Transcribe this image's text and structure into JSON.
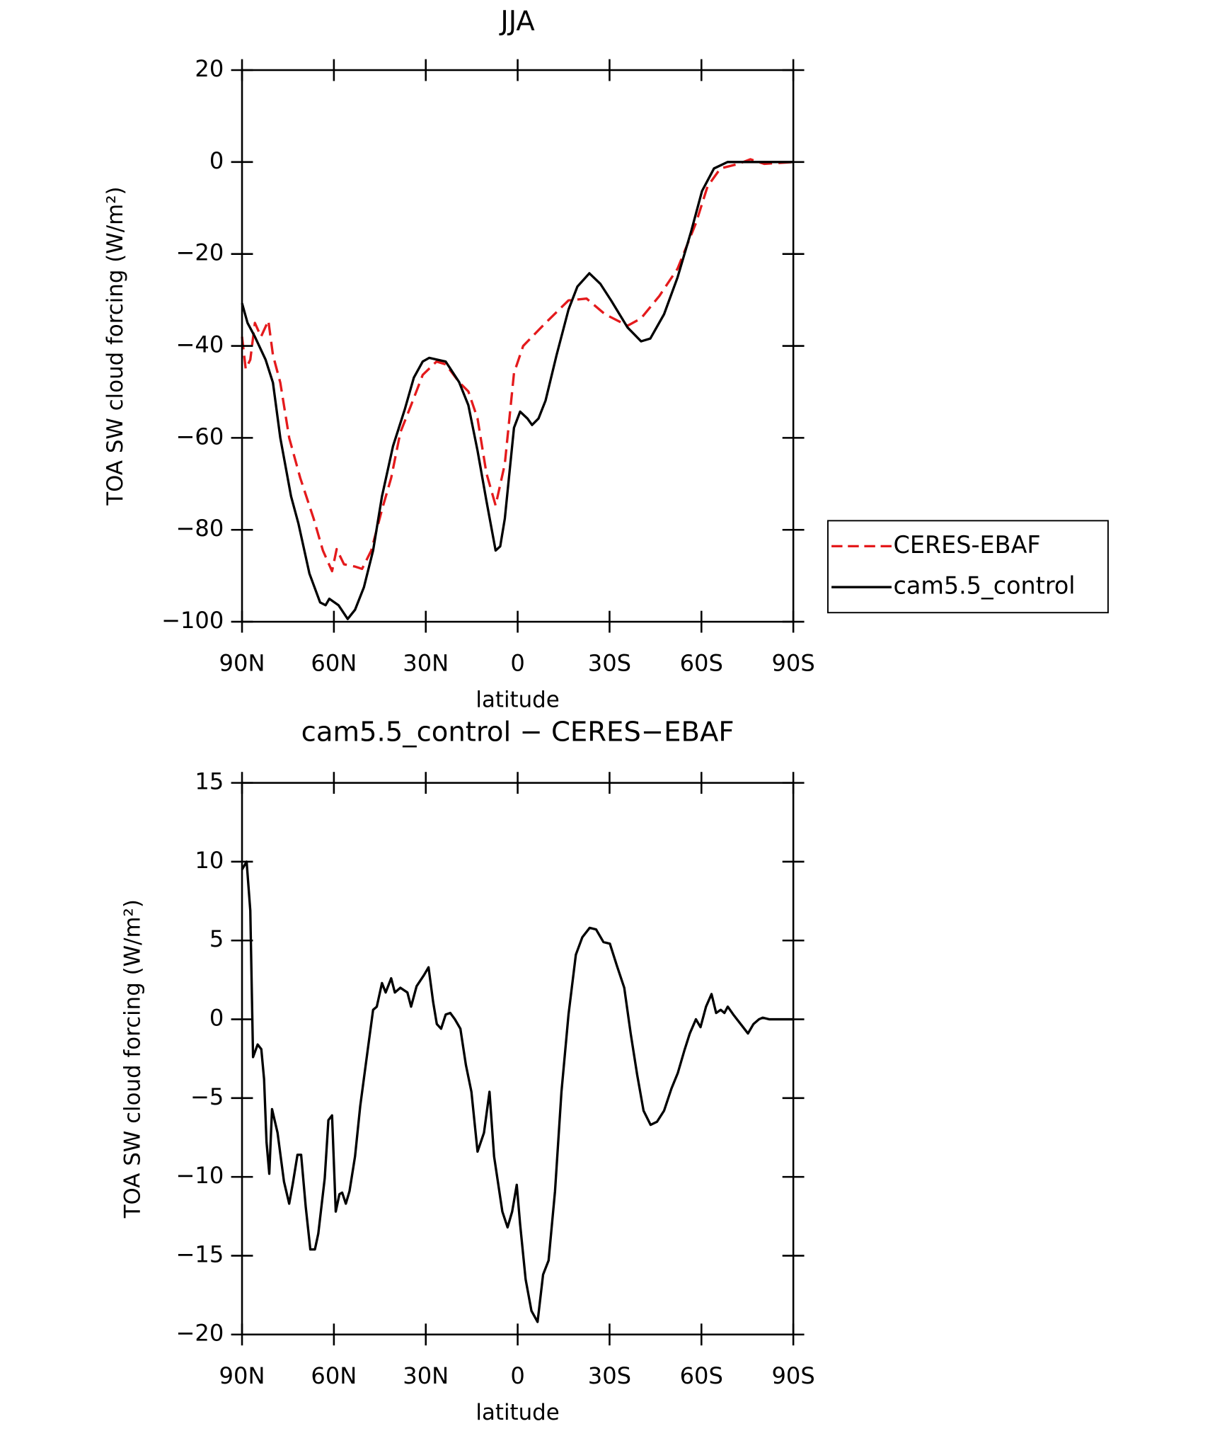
{
  "chart_data": [
    {
      "type": "line",
      "title": "JJA",
      "x_label": "latitude",
      "y_label": "TOA SW cloud forcing (W/m²)",
      "xlim": [
        90,
        -90
      ],
      "xticks": [
        {
          "value": 90,
          "label": "90N"
        },
        {
          "value": 60,
          "label": "60N"
        },
        {
          "value": 30,
          "label": "30N"
        },
        0,
        {
          "value": -30,
          "label": "30S"
        },
        {
          "value": -60,
          "label": "60S"
        },
        {
          "value": -90,
          "label": "90S"
        }
      ],
      "ylim": [
        -100,
        20
      ],
      "yticks": [
        {
          "value": -100,
          "label": "−100"
        },
        {
          "value": -80,
          "label": "−80"
        },
        {
          "value": -60,
          "label": "−60"
        },
        {
          "value": -40,
          "label": "−40"
        },
        {
          "value": -20,
          "label": "−20"
        },
        0,
        20
      ],
      "legend": "right",
      "series": [
        {
          "name": "CERES-EBAF",
          "color": "#e41a1c",
          "dash": true,
          "x": [
            90,
            88.8,
            87.3,
            85.8,
            83.8,
            81.4,
            79.9,
            77.5,
            74.6,
            71,
            66.6,
            63.6,
            60.6,
            59.1,
            56.7,
            53.1,
            50.8,
            47.8,
            44.3,
            41.3,
            38.3,
            34.8,
            31,
            26.5,
            23.5,
            19.1,
            16.1,
            13.1,
            10.2,
            7.2,
            4.2,
            1.2,
            -1.8,
            -9.1,
            -16.6,
            -22.5,
            -28.5,
            -35.9,
            -40.3,
            -46.3,
            -52.2,
            -58.2,
            -62,
            -66.2,
            -72.1,
            -76,
            -80.5,
            -90
          ],
          "values": [
            -38,
            -45,
            -43,
            -35,
            -38,
            -34.5,
            -42,
            -48,
            -60,
            -68.7,
            -77.6,
            -84.5,
            -89,
            -84.2,
            -87.5,
            -88,
            -88.5,
            -84.5,
            -75.6,
            -68.7,
            -58.8,
            -52.9,
            -46.3,
            -43.4,
            -44,
            -47.9,
            -49.9,
            -55.8,
            -67.7,
            -74.7,
            -65.7,
            -45.9,
            -40,
            -35,
            -30.1,
            -29.7,
            -33.1,
            -35.6,
            -34,
            -29.1,
            -23.2,
            -13.3,
            -5.3,
            -1.4,
            -0.4,
            0.6,
            -0.4,
            0
          ]
        },
        {
          "name": "cam5.5_control",
          "color": "#000000",
          "dash": false,
          "x": [
            90,
            88.2,
            85.8,
            82.3,
            79.9,
            77.5,
            74,
            71.6,
            68,
            64.5,
            62.7,
            61.5,
            58.5,
            55.5,
            53.1,
            50.2,
            47.2,
            44.3,
            40.7,
            36.9,
            33.9,
            31,
            28.9,
            23.5,
            19.1,
            16.1,
            13.1,
            10.2,
            7.2,
            5.7,
            4.2,
            1.2,
            -0.8,
            -3.2,
            -4.7,
            -6.8,
            -9.1,
            -12.7,
            -16.6,
            -19.5,
            -23.4,
            -27,
            -30.5,
            -35.9,
            -40.3,
            -43.3,
            -47.8,
            -52.2,
            -56.6,
            -60.2,
            -64.1,
            -68.5,
            -90
          ],
          "values": [
            -30.7,
            -35,
            -38,
            -43,
            -48,
            -60,
            -72.7,
            -78.6,
            -89.5,
            -95.8,
            -96.4,
            -95,
            -96.4,
            -99.4,
            -97.4,
            -92.5,
            -84.5,
            -72.7,
            -61.8,
            -53.9,
            -46.9,
            -43.4,
            -42.6,
            -43.4,
            -47.9,
            -52.9,
            -62.8,
            -73.7,
            -84.5,
            -83.6,
            -77.6,
            -57.8,
            -54.3,
            -55.8,
            -57.2,
            -55.8,
            -51.9,
            -42,
            -32.1,
            -27.1,
            -24.2,
            -26.5,
            -30.1,
            -36,
            -39,
            -38.4,
            -33.1,
            -25.1,
            -15.2,
            -6.3,
            -1.4,
            0,
            0
          ]
        }
      ]
    },
    {
      "type": "line",
      "title": "cam5.5_control − CERES−EBAF",
      "x_label": "latitude",
      "y_label": "TOA SW cloud forcing (W/m²)",
      "xlim": [
        90,
        -90
      ],
      "xticks": [
        {
          "value": 90,
          "label": "90N"
        },
        {
          "value": 60,
          "label": "60N"
        },
        {
          "value": 30,
          "label": "30N"
        },
        0,
        {
          "value": -30,
          "label": "30S"
        },
        {
          "value": -60,
          "label": "60S"
        },
        {
          "value": -90,
          "label": "90S"
        }
      ],
      "ylim": [
        -20,
        15
      ],
      "yticks": [
        {
          "value": -20,
          "label": "−20"
        },
        {
          "value": -15,
          "label": "−15"
        },
        {
          "value": -10,
          "label": "−10"
        },
        {
          "value": -5,
          "label": "−5"
        },
        0,
        5,
        10,
        15
      ],
      "series": [
        {
          "color": "#000000",
          "dash": false,
          "x": [
            90,
            88.5,
            87.3,
            86.4,
            84.9,
            83.7,
            82.8,
            82,
            81.1,
            80.2,
            78.4,
            76.3,
            74.6,
            73.4,
            71.9,
            70.7,
            69.2,
            67.7,
            66.2,
            65.1,
            63,
            61.8,
            60.6,
            59.4,
            58.2,
            57.3,
            56.1,
            54.9,
            53.1,
            51.4,
            49,
            47.2,
            46,
            44.3,
            43.1,
            41.3,
            40.1,
            38.3,
            36,
            34.8,
            33,
            30.6,
            29.1,
            27.6,
            26.4,
            25,
            23.5,
            22,
            20.5,
            18.7,
            16.9,
            15.1,
            13.1,
            11,
            9.2,
            7.7,
            5,
            3.3,
            1.8,
            0.3,
            -0.8,
            -2.6,
            -4.5,
            -6.5,
            -8.3,
            -10.1,
            -12.2,
            -14.3,
            -16.6,
            -19,
            -21.1,
            -23.5,
            -25.6,
            -28,
            -30.1,
            -32.4,
            -34.8,
            -36.9,
            -39,
            -41.1,
            -43.4,
            -45.5,
            -47.8,
            -50.2,
            -52.3,
            -54.4,
            -56.2,
            -58.2,
            -59.7,
            -61.5,
            -63.3,
            -64.8,
            -66.3,
            -67.5,
            -68.6,
            -70.4,
            -72.8,
            -75.2,
            -77,
            -78.8,
            -80,
            -82.1,
            -90
          ],
          "values": [
            9.5,
            10,
            6.9,
            -2.4,
            -1.6,
            -1.9,
            -3.8,
            -7.8,
            -9.8,
            -5.7,
            -7.2,
            -10.3,
            -11.7,
            -10.4,
            -8.6,
            -8.6,
            -11.9,
            -14.6,
            -14.6,
            -13.6,
            -10.1,
            -6.4,
            -6.1,
            -12.2,
            -11.1,
            -11,
            -11.7,
            -10.9,
            -8.7,
            -5.5,
            -2,
            0.6,
            0.8,
            2.3,
            1.7,
            2.6,
            1.7,
            2,
            1.7,
            0.8,
            2.1,
            2.8,
            3.3,
            1.1,
            -0.3,
            -0.6,
            0.3,
            0.4,
            0,
            -0.6,
            -2.9,
            -4.6,
            -8.4,
            -7.2,
            -4.6,
            -8.7,
            -12.2,
            -13.2,
            -12.2,
            -10.5,
            -13,
            -16.5,
            -18.5,
            -19.2,
            -16.2,
            -15.3,
            -10.9,
            -4.6,
            0.3,
            4.1,
            5.2,
            5.8,
            5.7,
            4.9,
            4.8,
            3.4,
            2,
            -0.9,
            -3.5,
            -5.8,
            -6.7,
            -6.5,
            -5.8,
            -4.4,
            -3.4,
            -2,
            -0.9,
            0,
            -0.5,
            0.8,
            1.6,
            0.4,
            0.6,
            0.4,
            0.8,
            0.3,
            -0.3,
            -0.9,
            -0.3,
            0,
            0.1,
            0,
            0
          ]
        }
      ]
    }
  ]
}
